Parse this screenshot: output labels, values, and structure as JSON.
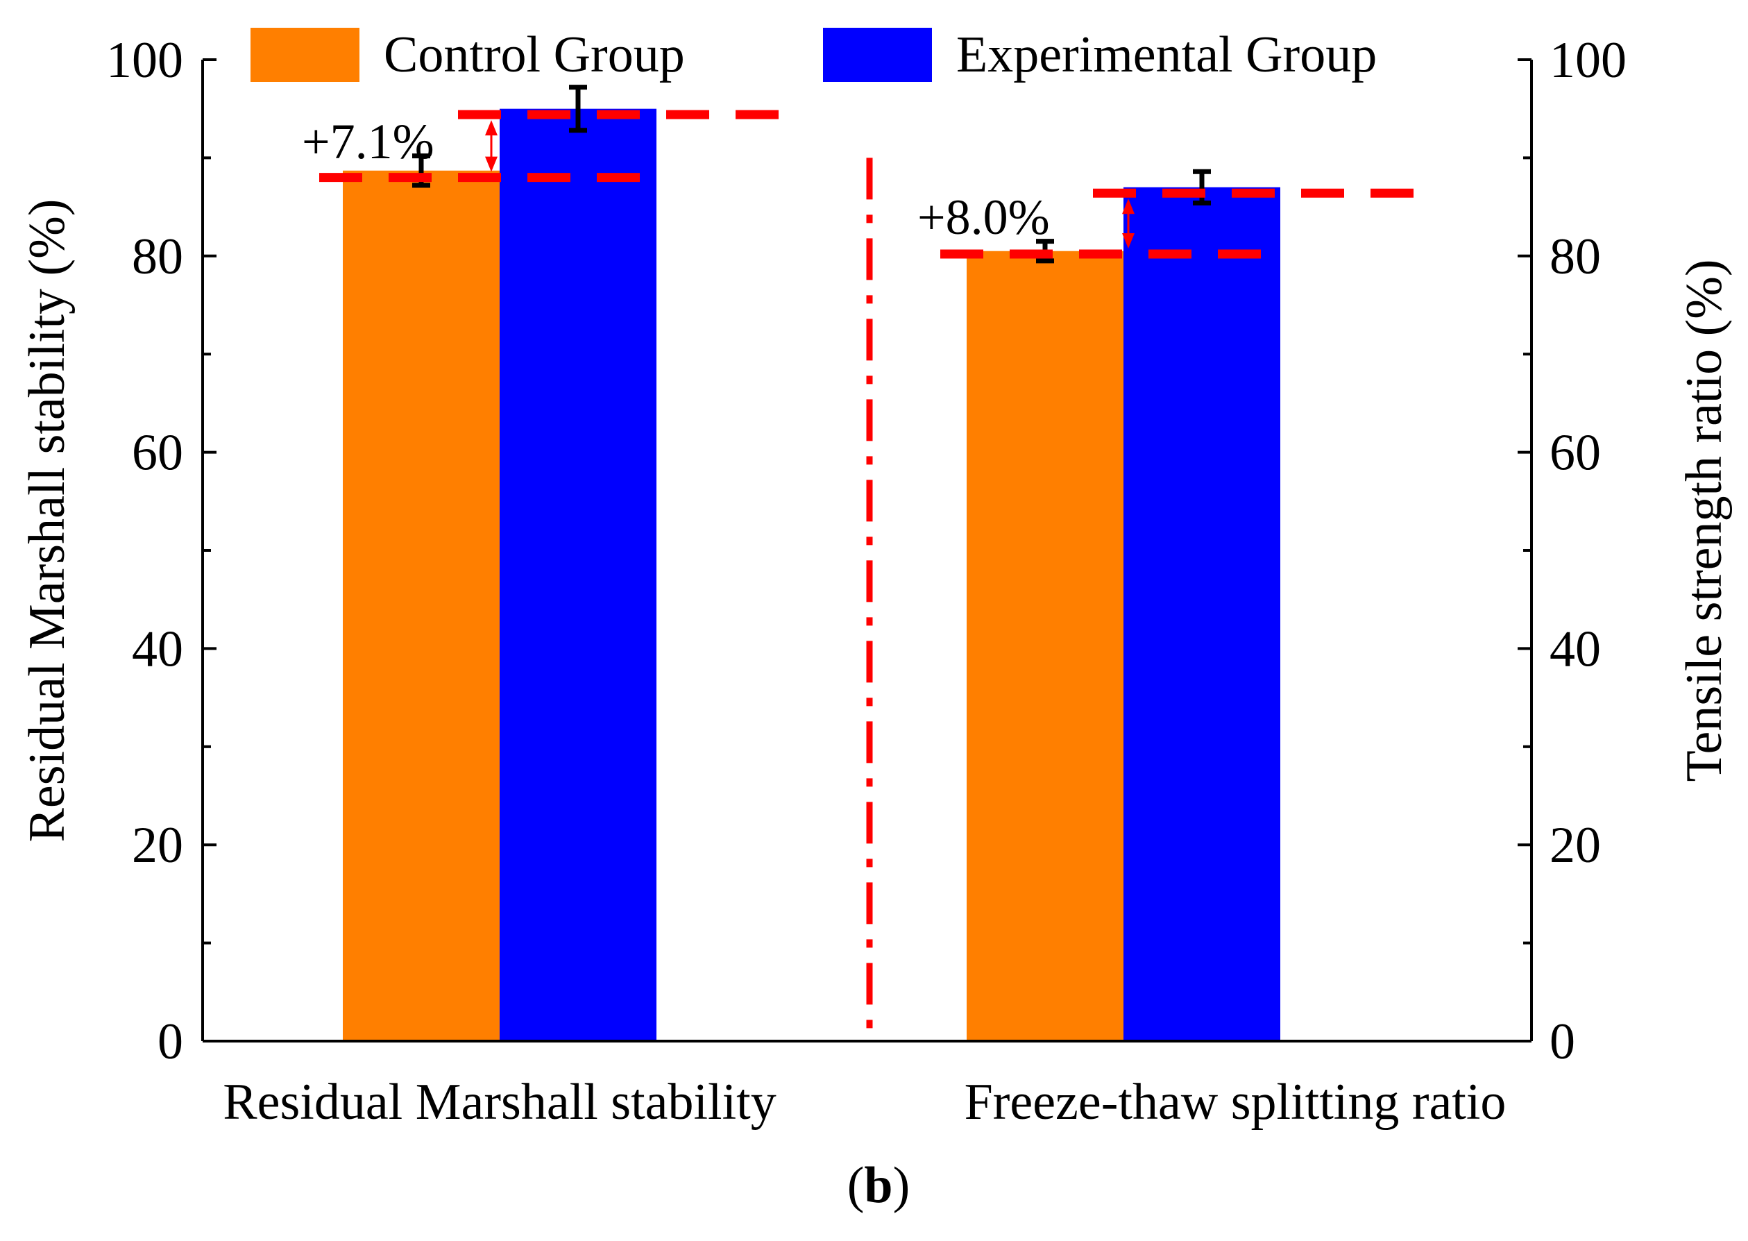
{
  "chart_data": {
    "type": "bar",
    "categories": [
      "Residual Marshall stability",
      "Freeze-thaw splitting ratio"
    ],
    "series": [
      {
        "name": "Control Group",
        "color": "#FF7F00",
        "values": [
          88.7,
          80.5
        ],
        "errors": [
          1.5,
          1.0
        ]
      },
      {
        "name": "Experimental Group",
        "color": "#0000FF",
        "values": [
          95.0,
          87.0
        ],
        "errors": [
          2.2,
          1.6
        ]
      }
    ],
    "ylabel": "Residual Marshall stability (%)",
    "y2label": "Tensile strength ratio (%)",
    "ylim": [
      0,
      100
    ],
    "y2lim": [
      0,
      100
    ],
    "yticks": [
      0,
      20,
      40,
      60,
      80,
      100
    ],
    "ytick_labels": [
      "0",
      "20",
      "40",
      "60",
      "80",
      "100"
    ],
    "annotations": [
      {
        "text": "+7.1%",
        "category": "Residual Marshall stability",
        "from": 88.0,
        "to": 94.4,
        "color": "#FF0000"
      },
      {
        "text": "+8.0%",
        "category": "Freeze-thaw splitting ratio",
        "from": 80.2,
        "to": 86.4,
        "color": "#FF0000"
      }
    ],
    "divider": {
      "style": "dash-dot",
      "color": "#FF0000"
    },
    "legend_position": "top",
    "grid": false,
    "panel_label": {
      "open": "(",
      "letter": "b",
      "close": ")"
    }
  }
}
